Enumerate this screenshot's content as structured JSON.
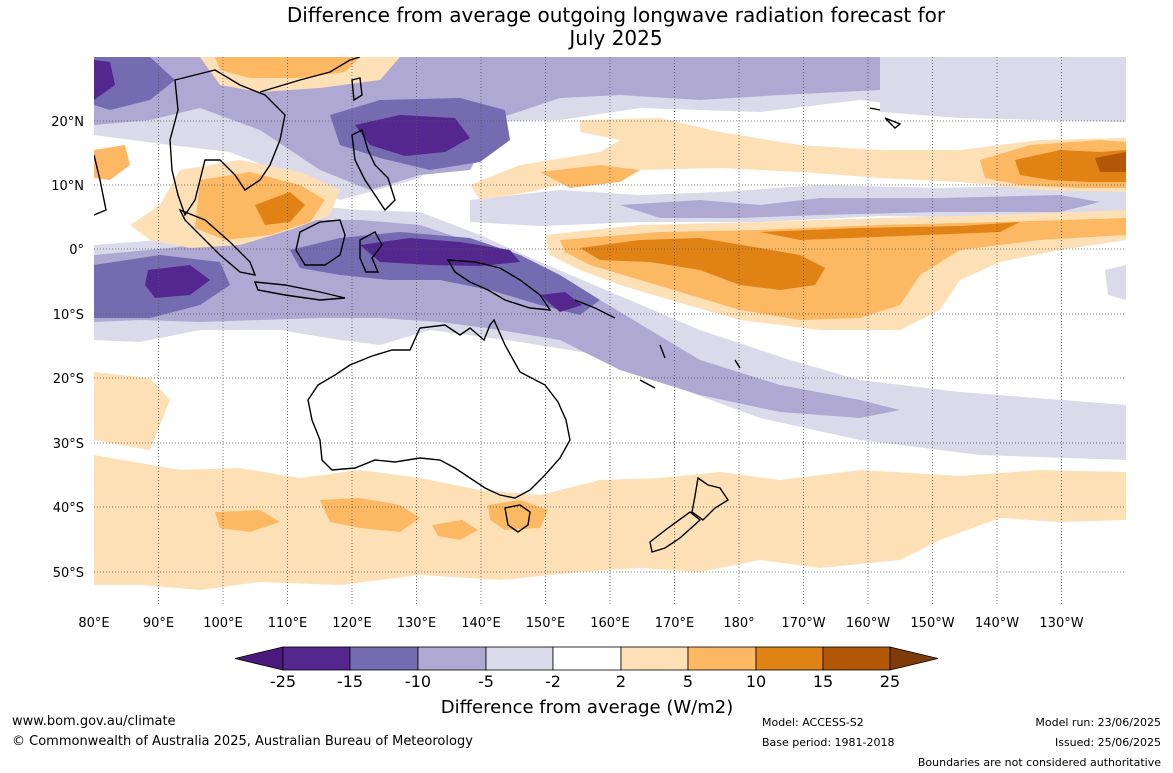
{
  "title": {
    "line1": "Difference from average outgoing longwave radiation forecast for",
    "line2": "July 2025"
  },
  "map": {
    "lon_labels": [
      "80°E",
      "90°E",
      "100°E",
      "110°E",
      "120°E",
      "130°E",
      "140°E",
      "150°E",
      "160°E",
      "170°E",
      "180°",
      "170°W",
      "160°W",
      "150°W",
      "140°W",
      "130°W"
    ],
    "lat_labels": [
      "20°N",
      "10°N",
      "0°",
      "10°S",
      "20°S",
      "30°S",
      "40°S",
      "50°S"
    ],
    "colors": {
      "strong_negative": "#4b1a7c",
      "neg_15": "#54278f",
      "neg_10": "#756bb1",
      "neg_5": "#aea8d3",
      "neg_2": "#dadaeb",
      "neutral": "#ffffff",
      "pos_2": "#fee0b6",
      "pos_5": "#fdb863",
      "pos_10": "#e08214",
      "pos_15": "#b35806",
      "strong_positive": "#7f3b08"
    }
  },
  "legend": {
    "ticks": [
      "-25",
      "-15",
      "-10",
      "-5",
      "-2",
      "2",
      "5",
      "10",
      "15",
      "25"
    ],
    "title": "Difference from average (W/m2)"
  },
  "footer": {
    "website": "www.bom.gov.au/climate",
    "copyright": "© Commonwealth of Australia 2025, Australian Bureau of Meteorology",
    "model": "Model: ACCESS-S2",
    "base_period": "Base period: 1981-2018",
    "model_run": "Model run: 23/06/2025",
    "issued": "Issued: 25/06/2025",
    "disclaimer": "Boundaries are not considered authoritative"
  }
}
